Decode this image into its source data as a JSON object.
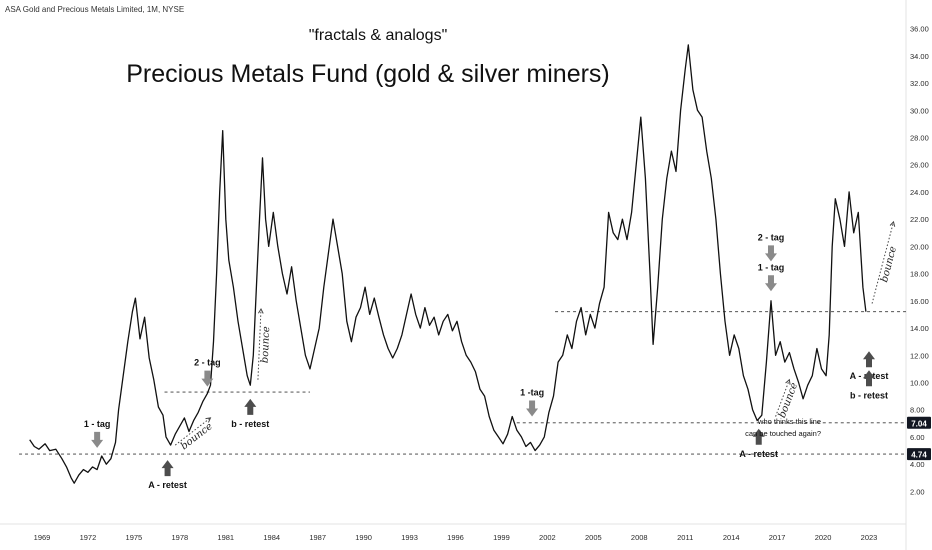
{
  "header": {
    "symbol_title": "ASA Gold and Precious Metals Limited, 1M, NYSE"
  },
  "chart_data": {
    "type": "line",
    "title": "Precious Metals Fund (gold & silver miners)",
    "subtitle": "\"fractals & analogs\"",
    "xlabel": "",
    "ylabel": "",
    "ylim": [
      1.0,
      37.0
    ],
    "y_ticks": [
      "36.00",
      "34.00",
      "32.00",
      "30.00",
      "28.00",
      "26.00",
      "24.00",
      "22.00",
      "20.00",
      "18.00",
      "16.00",
      "14.00",
      "12.00",
      "10.00",
      "8.00",
      "6.00",
      "4.00",
      "2.00"
    ],
    "x_ticks": [
      "1969",
      "1972",
      "1975",
      "1978",
      "1981",
      "1984",
      "1987",
      "1990",
      "1993",
      "1996",
      "1999",
      "2002",
      "2005",
      "2008",
      "2011",
      "2014",
      "2017",
      "2020",
      "2023"
    ],
    "grid": false,
    "series": [
      {
        "values": [
          [
            1968.2,
            5.8
          ],
          [
            1968.5,
            5.3
          ],
          [
            1968.8,
            5.1
          ],
          [
            1969.2,
            5.5
          ],
          [
            1969.5,
            5.0
          ],
          [
            1969.9,
            5.1
          ],
          [
            1970.3,
            4.4
          ],
          [
            1970.6,
            3.8
          ],
          [
            1970.9,
            3.0
          ],
          [
            1971.1,
            2.6
          ],
          [
            1971.4,
            3.2
          ],
          [
            1971.7,
            3.6
          ],
          [
            1972.0,
            3.4
          ],
          [
            1972.3,
            3.8
          ],
          [
            1972.6,
            3.6
          ],
          [
            1972.9,
            4.6
          ],
          [
            1973.2,
            4.0
          ],
          [
            1973.5,
            4.4
          ],
          [
            1973.8,
            5.6
          ],
          [
            1974.0,
            8.0
          ],
          [
            1974.3,
            10.5
          ],
          [
            1974.6,
            13.0
          ],
          [
            1974.9,
            15.2
          ],
          [
            1975.1,
            16.2
          ],
          [
            1975.4,
            13.2
          ],
          [
            1975.7,
            14.8
          ],
          [
            1976.0,
            11.8
          ],
          [
            1976.3,
            10.2
          ],
          [
            1976.6,
            8.2
          ],
          [
            1976.9,
            7.6
          ],
          [
            1977.1,
            6.0
          ],
          [
            1977.4,
            5.4
          ],
          [
            1977.7,
            6.2
          ],
          [
            1978.0,
            6.8
          ],
          [
            1978.3,
            7.4
          ],
          [
            1978.6,
            6.4
          ],
          [
            1978.9,
            7.2
          ],
          [
            1979.2,
            7.8
          ],
          [
            1979.5,
            8.6
          ],
          [
            1979.8,
            9.2
          ],
          [
            1980.0,
            9.8
          ],
          [
            1980.2,
            13.0
          ],
          [
            1980.4,
            18.0
          ],
          [
            1980.6,
            24.0
          ],
          [
            1980.8,
            28.5
          ],
          [
            1981.0,
            22.0
          ],
          [
            1981.2,
            19.0
          ],
          [
            1981.5,
            17.0
          ],
          [
            1981.8,
            14.5
          ],
          [
            1982.1,
            12.5
          ],
          [
            1982.4,
            10.5
          ],
          [
            1982.6,
            9.8
          ],
          [
            1982.8,
            12.0
          ],
          [
            1983.0,
            17.0
          ],
          [
            1983.2,
            22.0
          ],
          [
            1983.4,
            26.5
          ],
          [
            1983.6,
            22.0
          ],
          [
            1983.8,
            20.0
          ],
          [
            1984.1,
            22.5
          ],
          [
            1984.4,
            20.0
          ],
          [
            1984.7,
            18.0
          ],
          [
            1985.0,
            16.5
          ],
          [
            1985.3,
            18.5
          ],
          [
            1985.6,
            16.0
          ],
          [
            1985.9,
            14.0
          ],
          [
            1986.2,
            12.0
          ],
          [
            1986.5,
            11.0
          ],
          [
            1986.8,
            12.5
          ],
          [
            1987.1,
            14.0
          ],
          [
            1987.4,
            17.0
          ],
          [
            1987.7,
            19.5
          ],
          [
            1988.0,
            22.0
          ],
          [
            1988.3,
            20.0
          ],
          [
            1988.6,
            18.0
          ],
          [
            1988.9,
            14.5
          ],
          [
            1989.2,
            13.0
          ],
          [
            1989.5,
            14.8
          ],
          [
            1989.8,
            15.5
          ],
          [
            1990.1,
            17.0
          ],
          [
            1990.4,
            15.0
          ],
          [
            1990.7,
            16.2
          ],
          [
            1991.0,
            14.8
          ],
          [
            1991.3,
            13.5
          ],
          [
            1991.6,
            12.5
          ],
          [
            1991.9,
            11.8
          ],
          [
            1992.2,
            12.5
          ],
          [
            1992.5,
            13.5
          ],
          [
            1992.8,
            15.0
          ],
          [
            1993.1,
            16.5
          ],
          [
            1993.4,
            15.0
          ],
          [
            1993.7,
            14.0
          ],
          [
            1994.0,
            15.5
          ],
          [
            1994.3,
            14.2
          ],
          [
            1994.6,
            14.8
          ],
          [
            1994.9,
            13.5
          ],
          [
            1995.2,
            14.5
          ],
          [
            1995.5,
            15.0
          ],
          [
            1995.8,
            13.8
          ],
          [
            1996.1,
            14.5
          ],
          [
            1996.4,
            13.0
          ],
          [
            1996.7,
            12.0
          ],
          [
            1997.0,
            11.5
          ],
          [
            1997.3,
            10.8
          ],
          [
            1997.6,
            9.5
          ],
          [
            1997.9,
            9.0
          ],
          [
            1998.2,
            7.5
          ],
          [
            1998.5,
            6.5
          ],
          [
            1998.8,
            6.0
          ],
          [
            1999.1,
            5.5
          ],
          [
            1999.4,
            6.2
          ],
          [
            1999.7,
            7.5
          ],
          [
            2000.0,
            6.5
          ],
          [
            2000.3,
            6.0
          ],
          [
            2000.6,
            5.3
          ],
          [
            2000.9,
            5.6
          ],
          [
            2001.2,
            5.0
          ],
          [
            2001.5,
            5.4
          ],
          [
            2001.8,
            6.0
          ],
          [
            2002.1,
            7.8
          ],
          [
            2002.4,
            9.0
          ],
          [
            2002.7,
            11.5
          ],
          [
            2003.0,
            12.0
          ],
          [
            2003.3,
            13.5
          ],
          [
            2003.6,
            12.5
          ],
          [
            2003.9,
            14.5
          ],
          [
            2004.2,
            15.5
          ],
          [
            2004.5,
            13.5
          ],
          [
            2004.8,
            15.0
          ],
          [
            2005.1,
            14.0
          ],
          [
            2005.4,
            15.8
          ],
          [
            2005.7,
            17.0
          ],
          [
            2006.0,
            22.5
          ],
          [
            2006.3,
            21.0
          ],
          [
            2006.6,
            20.5
          ],
          [
            2006.9,
            22.0
          ],
          [
            2007.2,
            20.5
          ],
          [
            2007.5,
            22.5
          ],
          [
            2007.8,
            26.0
          ],
          [
            2008.1,
            29.5
          ],
          [
            2008.4,
            25.0
          ],
          [
            2008.7,
            18.0
          ],
          [
            2008.9,
            12.8
          ],
          [
            2009.2,
            17.0
          ],
          [
            2009.5,
            22.0
          ],
          [
            2009.8,
            25.0
          ],
          [
            2010.1,
            27.0
          ],
          [
            2010.4,
            25.5
          ],
          [
            2010.7,
            30.0
          ],
          [
            2011.0,
            33.0
          ],
          [
            2011.2,
            34.8
          ],
          [
            2011.5,
            31.5
          ],
          [
            2011.8,
            30.0
          ],
          [
            2012.1,
            29.5
          ],
          [
            2012.4,
            27.0
          ],
          [
            2012.7,
            25.0
          ],
          [
            2013.0,
            22.0
          ],
          [
            2013.3,
            18.0
          ],
          [
            2013.6,
            14.5
          ],
          [
            2013.9,
            12.0
          ],
          [
            2014.2,
            13.5
          ],
          [
            2014.5,
            12.5
          ],
          [
            2014.8,
            10.5
          ],
          [
            2015.1,
            9.5
          ],
          [
            2015.4,
            8.0
          ],
          [
            2015.7,
            7.2
          ],
          [
            2016.0,
            7.6
          ],
          [
            2016.3,
            11.5
          ],
          [
            2016.6,
            16.0
          ],
          [
            2016.9,
            12.0
          ],
          [
            2017.2,
            13.0
          ],
          [
            2017.5,
            11.5
          ],
          [
            2017.8,
            12.2
          ],
          [
            2018.1,
            11.0
          ],
          [
            2018.4,
            10.0
          ],
          [
            2018.7,
            8.8
          ],
          [
            2019.0,
            9.8
          ],
          [
            2019.3,
            10.5
          ],
          [
            2019.6,
            12.5
          ],
          [
            2019.9,
            11.0
          ],
          [
            2020.2,
            10.5
          ],
          [
            2020.4,
            13.5
          ],
          [
            2020.6,
            20.0
          ],
          [
            2020.8,
            23.5
          ],
          [
            2021.1,
            22.0
          ],
          [
            2021.4,
            20.0
          ],
          [
            2021.7,
            24.0
          ],
          [
            2022.0,
            21.0
          ],
          [
            2022.3,
            22.5
          ],
          [
            2022.6,
            17.0
          ],
          [
            2022.8,
            15.2
          ]
        ]
      }
    ],
    "levels": [
      {
        "value": 4.74,
        "label": "4.74",
        "x_start": 1967.5
      },
      {
        "value": 7.04,
        "label": "7.04",
        "x_start": 2000.0
      },
      {
        "value": 9.3,
        "label": "",
        "x_start": 1977.0,
        "x_end": 1986.5
      },
      {
        "value": 15.2,
        "label": "",
        "x_start": 2002.5
      }
    ],
    "annotations": [
      {
        "text": "1 - tag",
        "kind": "arrow-down",
        "x": 1972.6,
        "y": 5.2
      },
      {
        "text": "A - retest",
        "kind": "arrow-up",
        "x": 1977.2,
        "y": 4.3
      },
      {
        "text": "2 - tag",
        "kind": "arrow-down",
        "x": 1979.8,
        "y": 9.7
      },
      {
        "text": "bounce",
        "kind": "bounce",
        "x0": 1977.7,
        "y0": 5.4,
        "x1": 1980.0,
        "y1": 7.4
      },
      {
        "text": "b - retest",
        "kind": "arrow-up",
        "x": 1982.6,
        "y": 8.8
      },
      {
        "text": "bounce",
        "kind": "bounce",
        "x0": 1983.1,
        "y0": 10.2,
        "x1": 1983.3,
        "y1": 15.4
      },
      {
        "text": "1 -tag",
        "kind": "arrow-down",
        "x": 2001.0,
        "y": 7.5
      },
      {
        "text": "A - retest",
        "kind": "arrow-up",
        "x": 2015.8,
        "y": 6.6
      },
      {
        "text": "2 - tag",
        "kind": "arrow-down",
        "x": 2016.6,
        "y": 18.9
      },
      {
        "text": "1 - tag",
        "kind": "arrow-down",
        "x": 2016.6,
        "y": 16.7
      },
      {
        "text": "bounce",
        "kind": "bounce",
        "x0": 2016.9,
        "y0": 7.5,
        "x1": 2017.8,
        "y1": 10.2
      },
      {
        "text": "A - retest",
        "kind": "arrow-up",
        "x": 2023.0,
        "y": 12.3
      },
      {
        "text": "b - retest",
        "kind": "arrow-up",
        "x": 2023.0,
        "y": 10.9
      },
      {
        "text": "bounce",
        "kind": "bounce",
        "x0": 2023.2,
        "y0": 15.8,
        "x1": 2024.6,
        "y1": 21.8
      }
    ],
    "note": [
      "who thinks this line",
      "can be touched again?"
    ]
  },
  "colors": {
    "price_line": "#111111",
    "arrow_gray": "#8a8a8a",
    "arrow_dark": "#4d4d4d",
    "level_badge": "#131722",
    "axis_text": "#2b2b2b",
    "dashed_line": "#3a3a3a"
  }
}
